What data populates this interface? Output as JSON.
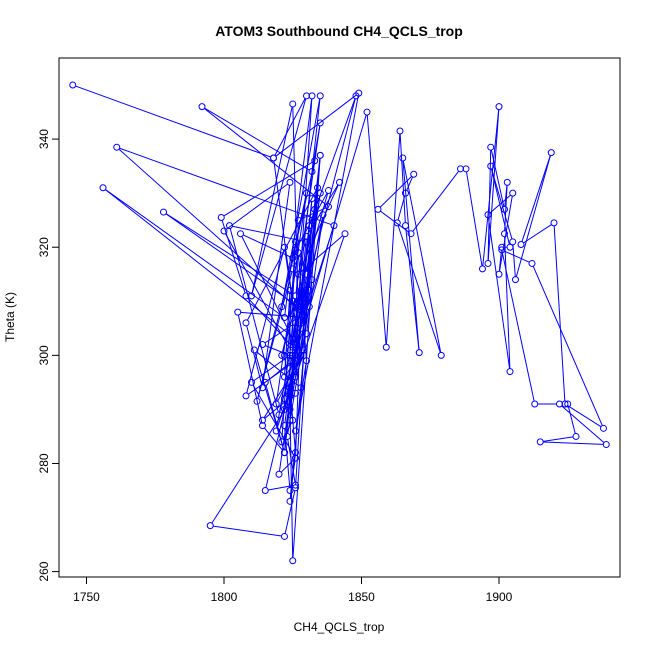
{
  "chart_data": {
    "type": "line",
    "title": "ATOM3 Southbound CH4_QCLS_trop",
    "xlabel": "CH4_QCLS_trop",
    "ylabel": "Theta (K)",
    "xlim": [
      1740,
      1944
    ],
    "ylim": [
      259,
      355
    ],
    "xticks": [
      1750,
      1800,
      1850,
      1900
    ],
    "yticks": [
      260,
      280,
      300,
      320,
      340
    ],
    "grid": false,
    "marker": "open-circle",
    "color": "#0000ff",
    "x": [
      1745,
      1818,
      1830,
      1810,
      1825,
      1827,
      1761,
      1840,
      1826,
      1826,
      1756,
      1822,
      1832,
      1827,
      1778,
      1826,
      1835,
      1832,
      1792,
      1838,
      1827,
      1826,
      1806,
      1825,
      1833,
      1799,
      1808,
      1825,
      1834,
      1808,
      1814,
      1824,
      1800,
      1824,
      1826,
      1821,
      1838,
      1826,
      1812,
      1825,
      1830,
      1802,
      1820,
      1829,
      1805,
      1814,
      1822,
      1831,
      1848,
      1825,
      1828,
      1830,
      1842,
      1827,
      1844,
      1822,
      1836,
      1830,
      1826,
      1819,
      1833,
      1828,
      1811,
      1822,
      1815,
      1825,
      1826,
      1828,
      1835,
      1824,
      1822,
      1832,
      1826,
      1829,
      1822,
      1824,
      1826,
      1820,
      1826,
      1830,
      1835,
      1831,
      1831,
      1823,
      1826,
      1815,
      1824,
      1826,
      1824,
      1829,
      1814,
      1826,
      1795,
      1822,
      1826,
      1832,
      1828,
      1835,
      1825,
      1824,
      1832,
      1827,
      1830,
      1826,
      1849,
      1818,
      1826,
      1835,
      1821,
      1830,
      1819,
      1829,
      1822,
      1828,
      1826,
      1810,
      1824,
      1814,
      1826,
      1822,
      1808,
      1826,
      1822,
      1824,
      1824,
      1826,
      1824,
      1825,
      1825,
      1826,
      1821,
      1825,
      1822,
      1826,
      1852,
      1859,
      1864,
      1866,
      1871,
      1865,
      1879,
      1863,
      1866,
      1869,
      1856,
      1868,
      1886,
      1888,
      1894,
      1900,
      1896,
      1897,
      1902,
      1903,
      1902,
      1904,
      1896,
      1905,
      1900,
      1901,
      1904,
      1897,
      1905,
      1906,
      1919,
      1908,
      1920,
      1924,
      1938,
      1912,
      1901,
      1913,
      1922,
      1939,
      1915,
      1928,
      1925
    ],
    "y": [
      350,
      336.5,
      348,
      311,
      346.5,
      308.5,
      338.5,
      324,
      302,
      303,
      331,
      307,
      348,
      309,
      326.5,
      311,
      343,
      334,
      346,
      327.5,
      325,
      302,
      322.5,
      318,
      336,
      325.5,
      311,
      301.5,
      331,
      306,
      294,
      332,
      323,
      301,
      311,
      300,
      330.5,
      319.5,
      291.5,
      316,
      321,
      324,
      289,
      307,
      308,
      287,
      282,
      324,
      348,
      303,
      312,
      322,
      332,
      315,
      322.5,
      290,
      326,
      304,
      297,
      286,
      327,
      294,
      301,
      282,
      295,
      299,
      297,
      305,
      330,
      293,
      282,
      329,
      296,
      313,
      287,
      275,
      281,
      278,
      299,
      315,
      337,
      312,
      309,
      285,
      276,
      275,
      294,
      282,
      273,
      300,
      288,
      293,
      268.5,
      266.5,
      275.5,
      325,
      300,
      337,
      262,
      290,
      314,
      319,
      299,
      286,
      348.5,
      336.5,
      306,
      348,
      309,
      330,
      291,
      301,
      292,
      309,
      281,
      295,
      300,
      302,
      306,
      320,
      292.5,
      299,
      296,
      312,
      294,
      302,
      288,
      300,
      310,
      321,
      284,
      288,
      300,
      300,
      345,
      301.5,
      341.5,
      324,
      300.5,
      336.5,
      300,
      324.5,
      330,
      333.5,
      327,
      322.5,
      334.5,
      334.5,
      316,
      346,
      317,
      338.5,
      327,
      332,
      322.5,
      297,
      326,
      330,
      315,
      320,
      320,
      335,
      321,
      314,
      337.5,
      320.5,
      324.5,
      291,
      286.5,
      317,
      319.5,
      291,
      291,
      283.5,
      284,
      285,
      291
    ]
  }
}
